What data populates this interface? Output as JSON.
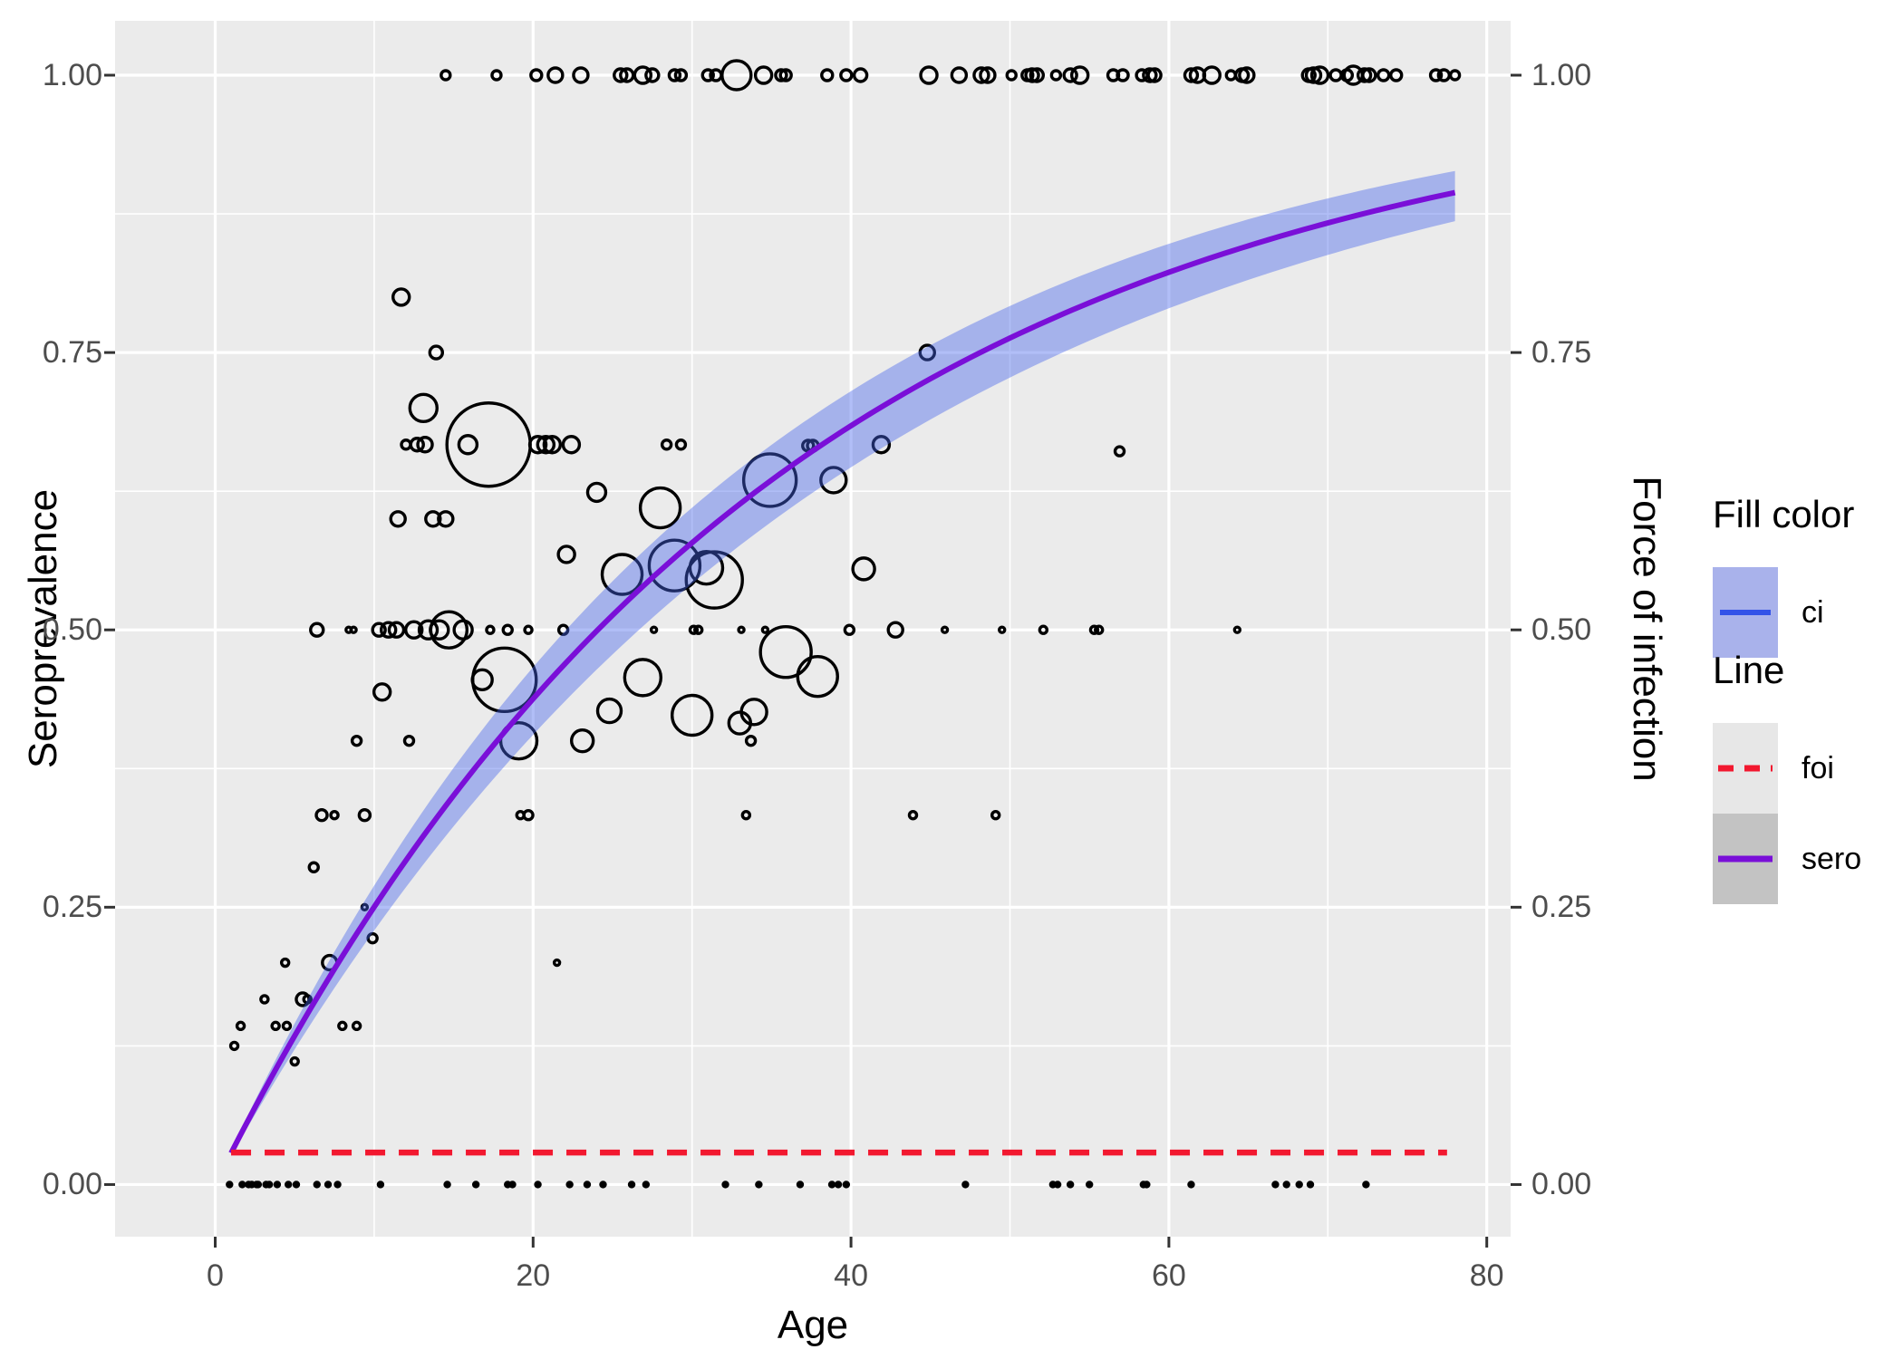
{
  "figure": {
    "x_title": "Age",
    "y_left_title": "Seroprevalence",
    "y_right_title": "Force of infection"
  },
  "legend": {
    "fill": {
      "title": "Fill color",
      "items": [
        {
          "label": "ci"
        }
      ]
    },
    "line": {
      "title": "Line",
      "items": [
        {
          "label": "foi"
        },
        {
          "label": "sero"
        }
      ]
    }
  },
  "colors": {
    "panel_background": "#EBEBEB",
    "grid": "#FFFFFF",
    "bubble_stroke": "#000000",
    "rug_dot": "#000000",
    "ribbon_fill": "rgba(70,100,235,0.42)",
    "sero_line_purple": "#7A0FD8",
    "foi_line_red": "#F2182F",
    "ci_key_line_blue": "#3353E8",
    "tick_mark": "#333333",
    "tick_label": "#4D4D4D"
  },
  "chart_data": {
    "type": "scatter",
    "title": "",
    "xlabel": "Age",
    "ylabel_left": "Seroprevalence",
    "ylabel_right": "Force of infection",
    "x_domain": [
      -6.3,
      81.5
    ],
    "y_domain": [
      -0.047,
      1.049
    ],
    "x_ticks": [
      0,
      20,
      40,
      60,
      80
    ],
    "x_tick_labels": [
      "0",
      "20",
      "40",
      "60",
      "80"
    ],
    "x_minor_ticks": [
      10,
      30,
      50,
      70
    ],
    "y_ticks": [
      0,
      0.25,
      0.5,
      0.75,
      1
    ],
    "y_tick_labels": [
      "0.00",
      "0.25",
      "0.50",
      "0.75",
      "1.00"
    ],
    "y_minor_ticks": [
      0.125,
      0.375,
      0.625,
      0.875
    ],
    "grid": "on",
    "legend_position": "right",
    "sero_curve": {
      "name": "sero",
      "model": "seroprevalence = 1 - exp(-foi * age)",
      "foi_mean": 0.0288,
      "foi_upper": 0.0314,
      "foi_lower": 0.026,
      "age_start": 1,
      "age_end": 78
    },
    "foi_line": {
      "name": "foi",
      "value": 0.0288,
      "age_start": 1,
      "age_end": 77.5
    },
    "bubbles_format": [
      "age",
      "seroprevalence",
      "radius_px"
    ],
    "bubbles": [
      [
        14.5,
        1.0,
        5
      ],
      [
        17.7,
        1.0,
        5
      ],
      [
        20.2,
        1.0,
        6
      ],
      [
        21.4,
        1.0,
        8
      ],
      [
        23.0,
        1.0,
        8
      ],
      [
        25.5,
        1.0,
        7
      ],
      [
        25.9,
        1.0,
        7
      ],
      [
        26.9,
        1.0,
        9
      ],
      [
        27.5,
        1.0,
        7
      ],
      [
        28.9,
        1.0,
        6
      ],
      [
        29.3,
        1.0,
        6
      ],
      [
        31.0,
        1.0,
        6
      ],
      [
        31.5,
        1.0,
        6
      ],
      [
        32.8,
        1.0,
        16
      ],
      [
        34.5,
        1.0,
        9
      ],
      [
        35.6,
        1.0,
        6
      ],
      [
        35.9,
        1.0,
        6
      ],
      [
        38.5,
        1.0,
        6
      ],
      [
        39.7,
        1.0,
        6
      ],
      [
        40.6,
        1.0,
        7
      ],
      [
        44.9,
        1.0,
        9
      ],
      [
        46.8,
        1.0,
        8
      ],
      [
        48.2,
        1.0,
        8
      ],
      [
        48.6,
        1.0,
        8
      ],
      [
        50.1,
        1.0,
        5
      ],
      [
        51.1,
        1.0,
        6
      ],
      [
        51.4,
        1.0,
        7
      ],
      [
        51.7,
        1.0,
        7
      ],
      [
        52.9,
        1.0,
        5
      ],
      [
        53.8,
        1.0,
        7
      ],
      [
        54.4,
        1.0,
        9
      ],
      [
        56.5,
        1.0,
        6
      ],
      [
        57.1,
        1.0,
        6
      ],
      [
        58.3,
        1.0,
        6
      ],
      [
        58.8,
        1.0,
        7
      ],
      [
        59.1,
        1.0,
        7
      ],
      [
        61.4,
        1.0,
        7
      ],
      [
        61.8,
        1.0,
        8
      ],
      [
        62.7,
        1.0,
        9
      ],
      [
        63.9,
        1.0,
        5
      ],
      [
        64.6,
        1.0,
        7
      ],
      [
        64.9,
        1.0,
        8
      ],
      [
        68.8,
        1.0,
        7
      ],
      [
        69.1,
        1.0,
        8
      ],
      [
        69.5,
        1.0,
        9
      ],
      [
        70.5,
        1.0,
        6
      ],
      [
        71.2,
        1.0,
        6
      ],
      [
        71.6,
        1.0,
        10
      ],
      [
        72.3,
        1.0,
        7
      ],
      [
        72.6,
        1.0,
        7
      ],
      [
        73.5,
        1.0,
        6
      ],
      [
        74.3,
        1.0,
        6
      ],
      [
        76.8,
        1.0,
        6
      ],
      [
        77.3,
        1.0,
        6
      ],
      [
        78.0,
        1.0,
        5
      ],
      [
        11.7,
        0.8,
        9
      ],
      [
        13.9,
        0.75,
        7
      ],
      [
        44.8,
        0.75,
        8
      ],
      [
        13.1,
        0.7,
        15
      ],
      [
        12.0,
        0.667,
        5
      ],
      [
        12.7,
        0.667,
        7
      ],
      [
        13.2,
        0.667,
        8
      ],
      [
        15.9,
        0.667,
        10
      ],
      [
        17.2,
        0.667,
        46
      ],
      [
        20.3,
        0.667,
        9
      ],
      [
        20.8,
        0.667,
        9
      ],
      [
        21.2,
        0.667,
        9
      ],
      [
        22.4,
        0.667,
        9
      ],
      [
        28.4,
        0.667,
        5
      ],
      [
        29.3,
        0.667,
        5
      ],
      [
        37.3,
        0.666,
        6
      ],
      [
        37.6,
        0.666,
        6
      ],
      [
        41.9,
        0.667,
        9
      ],
      [
        56.9,
        0.661,
        5
      ],
      [
        34.9,
        0.635,
        29
      ],
      [
        38.9,
        0.635,
        14
      ],
      [
        24.0,
        0.624,
        10
      ],
      [
        28.0,
        0.61,
        22
      ],
      [
        11.5,
        0.6,
        8
      ],
      [
        13.7,
        0.6,
        8
      ],
      [
        14.5,
        0.6,
        8
      ],
      [
        22.1,
        0.568,
        9
      ],
      [
        25.6,
        0.55,
        22
      ],
      [
        28.9,
        0.558,
        28
      ],
      [
        31.4,
        0.545,
        31
      ],
      [
        30.9,
        0.556,
        18
      ],
      [
        40.8,
        0.555,
        12
      ],
      [
        6.4,
        0.5,
        7
      ],
      [
        8.4,
        0.5,
        3
      ],
      [
        8.7,
        0.5,
        3
      ],
      [
        10.3,
        0.5,
        7
      ],
      [
        10.9,
        0.5,
        8
      ],
      [
        11.4,
        0.5,
        8
      ],
      [
        12.5,
        0.5,
        9
      ],
      [
        13.4,
        0.5,
        10
      ],
      [
        14.1,
        0.5,
        10
      ],
      [
        14.7,
        0.5,
        20
      ],
      [
        15.6,
        0.5,
        10
      ],
      [
        17.3,
        0.5,
        4
      ],
      [
        18.4,
        0.5,
        5
      ],
      [
        19.7,
        0.5,
        4
      ],
      [
        21.9,
        0.5,
        5
      ],
      [
        27.6,
        0.5,
        3
      ],
      [
        30.1,
        0.5,
        4
      ],
      [
        30.4,
        0.5,
        4
      ],
      [
        33.1,
        0.5,
        3
      ],
      [
        34.6,
        0.5,
        3
      ],
      [
        39.9,
        0.5,
        5
      ],
      [
        42.8,
        0.5,
        8
      ],
      [
        45.9,
        0.5,
        3
      ],
      [
        49.5,
        0.5,
        3
      ],
      [
        52.1,
        0.5,
        4
      ],
      [
        55.3,
        0.5,
        4
      ],
      [
        55.6,
        0.5,
        4
      ],
      [
        64.3,
        0.5,
        3
      ],
      [
        35.9,
        0.48,
        28
      ],
      [
        18.2,
        0.455,
        35
      ],
      [
        16.8,
        0.455,
        11
      ],
      [
        26.9,
        0.457,
        20
      ],
      [
        37.9,
        0.458,
        22
      ],
      [
        10.5,
        0.444,
        9
      ],
      [
        24.8,
        0.427,
        13
      ],
      [
        30.0,
        0.423,
        22
      ],
      [
        33.9,
        0.426,
        14
      ],
      [
        33.0,
        0.416,
        12
      ],
      [
        8.9,
        0.4,
        5
      ],
      [
        12.2,
        0.4,
        5
      ],
      [
        19.1,
        0.4,
        20
      ],
      [
        23.1,
        0.4,
        12
      ],
      [
        33.7,
        0.4,
        5
      ],
      [
        6.7,
        0.333,
        6
      ],
      [
        7.5,
        0.333,
        4
      ],
      [
        9.4,
        0.333,
        6
      ],
      [
        19.2,
        0.333,
        4
      ],
      [
        19.7,
        0.333,
        5
      ],
      [
        33.4,
        0.333,
        4
      ],
      [
        43.9,
        0.333,
        4
      ],
      [
        49.1,
        0.333,
        4
      ],
      [
        6.2,
        0.286,
        5
      ],
      [
        9.4,
        0.25,
        3
      ],
      [
        9.9,
        0.222,
        5
      ],
      [
        4.4,
        0.2,
        4
      ],
      [
        7.2,
        0.2,
        8
      ],
      [
        21.5,
        0.2,
        3
      ],
      [
        3.1,
        0.167,
        4
      ],
      [
        5.5,
        0.167,
        7
      ],
      [
        5.8,
        0.167,
        4
      ],
      [
        1.6,
        0.143,
        4
      ],
      [
        3.8,
        0.143,
        4
      ],
      [
        4.5,
        0.143,
        4
      ],
      [
        8.0,
        0.143,
        4
      ],
      [
        8.9,
        0.143,
        4
      ],
      [
        1.2,
        0.125,
        4
      ],
      [
        5.0,
        0.111,
        4
      ]
    ],
    "rug_zero_ages": [
      0.9,
      1.7,
      2.1,
      2.3,
      2.6,
      2.7,
      3.2,
      3.4,
      3.9,
      4.6,
      5.1,
      6.4,
      7.1,
      7.7,
      10.4,
      14.6,
      16.4,
      18.4,
      18.7,
      20.3,
      22.3,
      23.4,
      24.4,
      26.2,
      27.1,
      32.1,
      34.2,
      36.8,
      38.8,
      39.2,
      39.7,
      47.2,
      52.7,
      53.0,
      53.8,
      55.0,
      58.4,
      58.6,
      61.4,
      66.7,
      67.4,
      68.2,
      68.9,
      72.4
    ]
  }
}
